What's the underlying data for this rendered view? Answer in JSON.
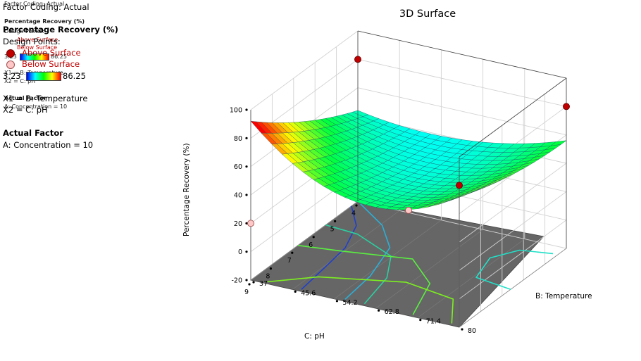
{
  "legend": {
    "factor_coding": "Factor Coding: Actual",
    "response": "Percentage Recovery (%)",
    "design_points": "Design Points:",
    "above": "Above Surface",
    "below": "Below Surface",
    "range_min": "3.23",
    "range_max": "86.25",
    "x1": "X1 = B: Temperature",
    "x2": "X2 = C: pH",
    "actual_factor_heading": "Actual Factor",
    "actual_factor_value": "A: Concentration = 10",
    "colors": {
      "above": "#c00000",
      "below": "#ffc8c8"
    }
  },
  "chart_data": {
    "type": "surface",
    "title": "3D Surface",
    "zlabel": "Percentage Recovery (%)",
    "xlabel": "B: Temperature",
    "ylabel": "C: pH",
    "zticks": [
      "-20",
      "0",
      "20",
      "40",
      "60",
      "80",
      "100"
    ],
    "xticks": [
      "37",
      "45.6",
      "54.2",
      "62.8",
      "71.4",
      "80"
    ],
    "yticks": [
      "4",
      "5",
      "6",
      "7",
      "8",
      "9"
    ],
    "xlim": [
      37,
      80
    ],
    "ylim": [
      4,
      9
    ],
    "zlim": [
      -20,
      100
    ],
    "design_points": [
      {
        "temperature": 37,
        "ph": 9,
        "recovery": 20,
        "position": "below"
      },
      {
        "temperature": 80,
        "ph": 9,
        "recovery": 80,
        "position": "above"
      },
      {
        "temperature": 37,
        "ph": 4,
        "recovery": 80,
        "position": "above"
      },
      {
        "temperature": 80,
        "ph": 4,
        "recovery": 80,
        "position": "above"
      },
      {
        "temperature": 58.5,
        "ph": 6.5,
        "recovery": 18,
        "position": "below"
      }
    ]
  }
}
